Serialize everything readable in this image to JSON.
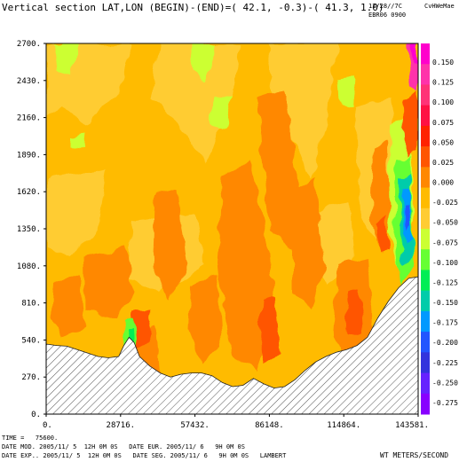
{
  "header": {
    "title": "Vertical section LAT,LON (BEGIN)-(END)=( 42.1, -0.3)-( 41.3,  1.0)",
    "date_line": "12/28//7C",
    "model_line": "EBR06 0900",
    "logo": "CvHWeMae"
  },
  "chart_data": {
    "type": "heatmap",
    "title": "Vertical section LAT,LON (BEGIN)-(END)=( 42.1, -0.3)-( 41.3,  1.0)",
    "xlabel": "",
    "ylabel": "",
    "units": "WT METERS/SECOND",
    "x_ticks": [
      "0.",
      "28716.",
      "57432.",
      "86148.",
      "114864.",
      "143581."
    ],
    "x_values": [
      0,
      28716,
      57432,
      86148,
      114864,
      143581
    ],
    "y_ticks": [
      "0.",
      "270.",
      "540.",
      "810.",
      "1080.",
      "1350.",
      "1620.",
      "1890.",
      "2160.",
      "2430.",
      "2700."
    ],
    "y_values": [
      0,
      270,
      540,
      810,
      1080,
      1350,
      1620,
      1890,
      2160,
      2430,
      2700
    ],
    "xlim": [
      0,
      143581
    ],
    "ylim": [
      0,
      2700
    ],
    "colorbar_labels": [
      "0.150",
      "0.125",
      "0.100",
      "0.075",
      "0.050",
      "0.025",
      "0.000",
      "-0.025",
      "-0.050",
      "-0.075",
      "-0.100",
      "-0.125",
      "-0.150",
      "-0.175",
      "-0.200",
      "-0.225",
      "-0.250",
      "-0.275"
    ],
    "colorbar_colors": [
      "#ff00cc",
      "#ff33aa",
      "#ff3377",
      "#ff1144",
      "#ff2200",
      "#ff5500",
      "#ff8800",
      "#ffbb00",
      "#ffcc33",
      "#ccff33",
      "#66ff33",
      "#00ee55",
      "#00ccaa",
      "#0099ff",
      "#2255ff",
      "#3333dd",
      "#6622ff",
      "#8800ff"
    ],
    "terrain": [
      [
        0,
        510
      ],
      [
        4000,
        500
      ],
      [
        8000,
        495
      ],
      [
        12000,
        470
      ],
      [
        16000,
        445
      ],
      [
        20000,
        420
      ],
      [
        24000,
        410
      ],
      [
        28000,
        420
      ],
      [
        30000,
        500
      ],
      [
        32000,
        560
      ],
      [
        34000,
        520
      ],
      [
        36000,
        420
      ],
      [
        40000,
        350
      ],
      [
        44000,
        300
      ],
      [
        48000,
        270
      ],
      [
        52000,
        290
      ],
      [
        56000,
        300
      ],
      [
        60000,
        300
      ],
      [
        64000,
        280
      ],
      [
        68000,
        230
      ],
      [
        72000,
        200
      ],
      [
        76000,
        210
      ],
      [
        80000,
        260
      ],
      [
        84000,
        220
      ],
      [
        88000,
        190
      ],
      [
        92000,
        200
      ],
      [
        96000,
        250
      ],
      [
        100000,
        320
      ],
      [
        104000,
        380
      ],
      [
        108000,
        420
      ],
      [
        112000,
        450
      ],
      [
        116000,
        470
      ],
      [
        120000,
        500
      ],
      [
        124000,
        560
      ],
      [
        128000,
        700
      ],
      [
        132000,
        820
      ],
      [
        136000,
        920
      ],
      [
        140000,
        990
      ],
      [
        143581,
        1000
      ]
    ]
  },
  "footer": {
    "time_line": "TIME =   75600.",
    "mod_line": "DATE MOD. 2005/11/ 5  12H 0M 0S   DATE EUR. 2005/11/ 6   9H 0M 0S",
    "exp_line": "DATE EXP.. 2005/11/ 5  12H 0M 0S   DATE SEG. 2005/11/ 6   9H 0M 0S   LAMBERT",
    "units_label": "WT METERS/SECOND"
  }
}
